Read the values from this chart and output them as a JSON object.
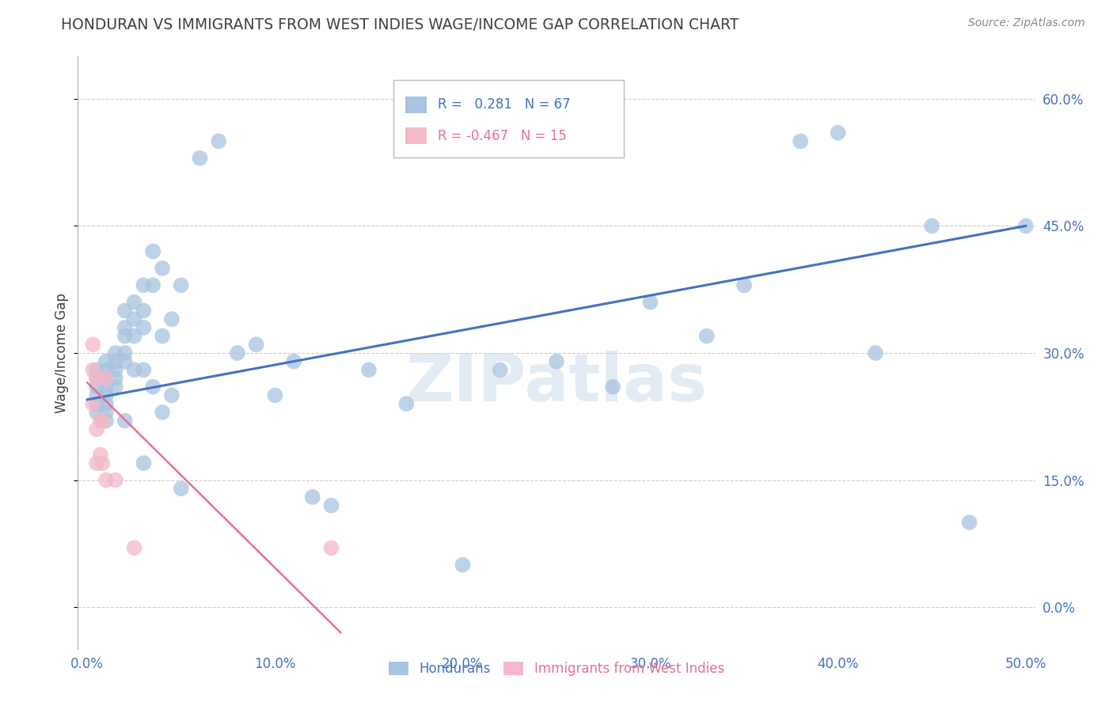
{
  "title": "HONDURAN VS IMMIGRANTS FROM WEST INDIES WAGE/INCOME GAP CORRELATION CHART",
  "source": "Source: ZipAtlas.com",
  "ylabel": "Wage/Income Gap",
  "xlabel_ticks": [
    "0.0%",
    "10.0%",
    "20.0%",
    "30.0%",
    "40.0%",
    "50.0%"
  ],
  "xlabel_vals": [
    0.0,
    0.1,
    0.2,
    0.3,
    0.4,
    0.5
  ],
  "ylabel_ticks": [
    "0.0%",
    "15.0%",
    "30.0%",
    "45.0%",
    "60.0%"
  ],
  "ylabel_vals": [
    0.0,
    0.15,
    0.3,
    0.45,
    0.6
  ],
  "xlim": [
    -0.005,
    0.505
  ],
  "ylim": [
    -0.05,
    0.65
  ],
  "blue_R": 0.281,
  "blue_N": 67,
  "pink_R": -0.467,
  "pink_N": 15,
  "legend_label_blue": "Hondurans",
  "legend_label_pink": "Immigrants from West Indies",
  "watermark": "ZIPatlas",
  "blue_color": "#a8c4e0",
  "pink_color": "#f4b8c8",
  "blue_line_color": "#4472c4",
  "pink_line_color": "#e87090",
  "axis_label_color": "#4472c4",
  "title_color": "#404040",
  "grid_color": "#cccccc",
  "blue_x": [
    0.005,
    0.005,
    0.005,
    0.005,
    0.005,
    0.005,
    0.01,
    0.01,
    0.01,
    0.01,
    0.01,
    0.01,
    0.01,
    0.01,
    0.015,
    0.015,
    0.015,
    0.015,
    0.015,
    0.02,
    0.02,
    0.02,
    0.02,
    0.02,
    0.02,
    0.025,
    0.025,
    0.025,
    0.025,
    0.03,
    0.03,
    0.03,
    0.03,
    0.03,
    0.035,
    0.035,
    0.035,
    0.04,
    0.04,
    0.04,
    0.045,
    0.045,
    0.05,
    0.05,
    0.06,
    0.07,
    0.08,
    0.09,
    0.1,
    0.11,
    0.12,
    0.13,
    0.15,
    0.17,
    0.2,
    0.22,
    0.25,
    0.28,
    0.3,
    0.33,
    0.35,
    0.38,
    0.4,
    0.42,
    0.45,
    0.47,
    0.5
  ],
  "blue_y": [
    0.28,
    0.27,
    0.26,
    0.25,
    0.24,
    0.23,
    0.29,
    0.28,
    0.27,
    0.26,
    0.25,
    0.24,
    0.23,
    0.22,
    0.3,
    0.29,
    0.28,
    0.27,
    0.26,
    0.35,
    0.33,
    0.32,
    0.3,
    0.29,
    0.22,
    0.36,
    0.34,
    0.32,
    0.28,
    0.38,
    0.35,
    0.33,
    0.28,
    0.17,
    0.42,
    0.38,
    0.26,
    0.4,
    0.32,
    0.23,
    0.34,
    0.25,
    0.38,
    0.14,
    0.53,
    0.55,
    0.3,
    0.31,
    0.25,
    0.29,
    0.13,
    0.12,
    0.28,
    0.24,
    0.05,
    0.28,
    0.29,
    0.26,
    0.36,
    0.32,
    0.38,
    0.55,
    0.56,
    0.3,
    0.45,
    0.1,
    0.45
  ],
  "pink_x": [
    0.003,
    0.003,
    0.003,
    0.005,
    0.005,
    0.005,
    0.007,
    0.007,
    0.008,
    0.008,
    0.01,
    0.01,
    0.015,
    0.025,
    0.13
  ],
  "pink_y": [
    0.31,
    0.28,
    0.24,
    0.27,
    0.21,
    0.17,
    0.22,
    0.18,
    0.22,
    0.17,
    0.27,
    0.15,
    0.15,
    0.07,
    0.07
  ],
  "blue_trend_x": [
    0.0,
    0.5
  ],
  "blue_trend_y": [
    0.245,
    0.45
  ],
  "pink_trend_x": [
    0.0,
    0.135
  ],
  "pink_trend_y": [
    0.265,
    -0.03
  ]
}
